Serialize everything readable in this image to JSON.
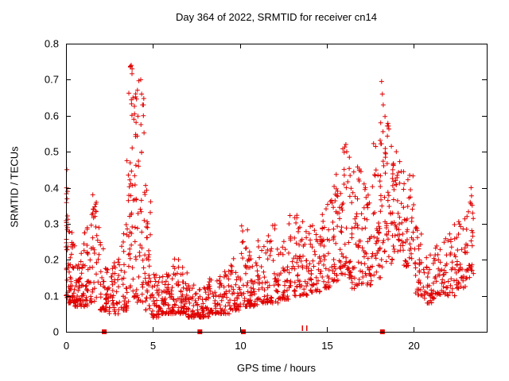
{
  "chart_data": {
    "type": "scatter",
    "title": "Day 364 of 2022, SRMTID for receiver cn14",
    "xlabel": "GPS time / hours",
    "ylabel": "SRMTID / TECUs",
    "xlim": [
      0,
      24.2
    ],
    "ylim": [
      0,
      0.8
    ],
    "xticks": [
      0,
      5,
      10,
      15,
      20
    ],
    "xtick_labels": [
      "0",
      "5",
      "10",
      "15",
      "20"
    ],
    "yticks": [
      0,
      0.1,
      0.2,
      0.3,
      0.4,
      0.5,
      0.6,
      0.7,
      0.8
    ],
    "ytick_labels": [
      "0",
      "0.1",
      "0.2",
      "0.3",
      "0.4",
      "0.5",
      "0.6",
      "0.7",
      "0.8"
    ],
    "grid": false,
    "legend": null,
    "marker": "plus",
    "colors": {
      "marker": "#e00000",
      "axis": "#000000",
      "background": "#ffffff",
      "text": "#000000"
    },
    "bin_format": [
      "x_start",
      "x_end",
      "count",
      "y_min",
      "y_max",
      "concentration_exponent"
    ],
    "point_bins": [
      [
        0.0,
        0.12,
        28,
        0.09,
        0.45,
        1.2
      ],
      [
        0.12,
        0.5,
        45,
        0.08,
        0.28,
        2.0
      ],
      [
        0.5,
        1.0,
        45,
        0.07,
        0.22,
        2.0
      ],
      [
        1.0,
        1.4,
        35,
        0.07,
        0.3,
        2.0
      ],
      [
        1.4,
        1.9,
        40,
        0.08,
        0.4,
        1.6
      ],
      [
        1.9,
        2.4,
        40,
        0.06,
        0.25,
        2.2
      ],
      [
        2.4,
        3.0,
        45,
        0.05,
        0.2,
        2.2
      ],
      [
        3.0,
        3.5,
        40,
        0.06,
        0.33,
        2.2
      ],
      [
        3.5,
        4.0,
        50,
        0.08,
        0.74,
        1.5
      ],
      [
        4.0,
        4.5,
        50,
        0.08,
        0.7,
        1.7
      ],
      [
        4.5,
        4.9,
        40,
        0.06,
        0.42,
        1.8
      ],
      [
        4.9,
        5.4,
        40,
        0.04,
        0.16,
        2.0
      ],
      [
        5.4,
        6.0,
        45,
        0.05,
        0.16,
        2.0
      ],
      [
        6.0,
        6.5,
        40,
        0.05,
        0.21,
        2.0
      ],
      [
        6.5,
        7.0,
        40,
        0.05,
        0.18,
        2.0
      ],
      [
        7.0,
        7.6,
        45,
        0.04,
        0.13,
        2.0
      ],
      [
        7.6,
        8.2,
        45,
        0.04,
        0.13,
        2.0
      ],
      [
        8.2,
        8.8,
        40,
        0.05,
        0.15,
        2.0
      ],
      [
        8.8,
        9.4,
        40,
        0.05,
        0.17,
        2.0
      ],
      [
        9.4,
        10.0,
        40,
        0.06,
        0.22,
        2.0
      ],
      [
        10.0,
        10.5,
        38,
        0.07,
        0.31,
        2.0
      ],
      [
        10.5,
        11.0,
        38,
        0.07,
        0.23,
        2.0
      ],
      [
        11.0,
        11.6,
        38,
        0.08,
        0.26,
        2.0
      ],
      [
        11.6,
        12.2,
        38,
        0.08,
        0.3,
        2.0
      ],
      [
        12.2,
        12.8,
        38,
        0.09,
        0.26,
        2.0
      ],
      [
        12.8,
        13.4,
        40,
        0.1,
        0.33,
        1.8
      ],
      [
        13.4,
        14.0,
        40,
        0.1,
        0.31,
        1.8
      ],
      [
        14.0,
        14.6,
        40,
        0.11,
        0.3,
        1.8
      ],
      [
        14.6,
        15.2,
        42,
        0.12,
        0.36,
        1.7
      ],
      [
        15.2,
        15.8,
        45,
        0.14,
        0.44,
        1.6
      ],
      [
        15.8,
        16.4,
        48,
        0.15,
        0.52,
        1.5
      ],
      [
        16.4,
        17.0,
        45,
        0.12,
        0.46,
        1.6
      ],
      [
        17.0,
        17.6,
        45,
        0.13,
        0.42,
        1.6
      ],
      [
        17.6,
        18.2,
        48,
        0.15,
        0.55,
        1.5
      ],
      [
        18.2,
        18.8,
        48,
        0.18,
        0.62,
        1.5
      ],
      [
        18.8,
        19.4,
        42,
        0.22,
        0.5,
        1.5
      ],
      [
        19.4,
        20.0,
        40,
        0.18,
        0.46,
        1.6
      ],
      [
        20.0,
        20.6,
        36,
        0.1,
        0.3,
        1.9
      ],
      [
        20.6,
        21.2,
        36,
        0.08,
        0.22,
        2.0
      ],
      [
        21.2,
        21.8,
        36,
        0.1,
        0.26,
        2.0
      ],
      [
        21.8,
        22.4,
        36,
        0.1,
        0.3,
        2.0
      ],
      [
        22.4,
        23.0,
        36,
        0.12,
        0.33,
        1.9
      ],
      [
        23.0,
        23.45,
        32,
        0.14,
        0.4,
        1.7
      ]
    ],
    "outlier_points": [
      [
        0.05,
        0.45
      ],
      [
        3.7,
        0.735
      ],
      [
        3.75,
        0.74
      ],
      [
        3.8,
        0.73
      ],
      [
        3.85,
        0.65
      ],
      [
        3.9,
        0.59
      ],
      [
        4.3,
        0.7
      ],
      [
        4.35,
        0.66
      ],
      [
        4.4,
        0.63
      ],
      [
        4.45,
        0.6
      ],
      [
        16.1,
        0.52
      ],
      [
        16.15,
        0.5
      ],
      [
        18.1,
        0.58
      ],
      [
        18.15,
        0.695
      ],
      [
        18.2,
        0.66
      ],
      [
        18.25,
        0.63
      ],
      [
        19.0,
        0.5
      ],
      [
        23.3,
        0.4
      ]
    ],
    "axis_markers": {
      "squares": [
        2.2,
        7.7,
        10.2,
        18.2
      ],
      "ticks": [
        13.6,
        13.85
      ]
    },
    "seed": 42
  }
}
